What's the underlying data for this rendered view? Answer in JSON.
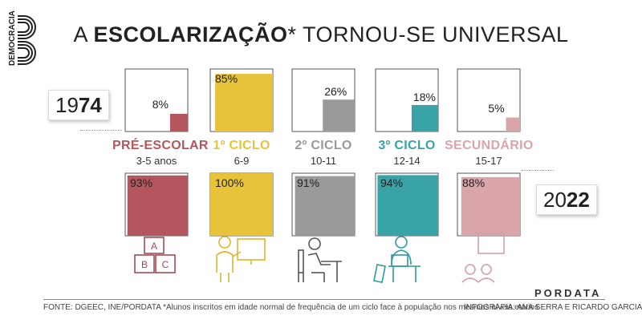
{
  "title": {
    "prefix": "A ",
    "bold": "ESCOLARIZAÇÃO",
    "suffix": "* TORNOU-SE UNIVERSAL"
  },
  "logo_text": "DEMOCRACIA",
  "years": {
    "y1974": {
      "prefix": "19",
      "bold": "74"
    },
    "y2022": {
      "prefix": "20",
      "bold": "22"
    }
  },
  "chart_data": {
    "type": "bar",
    "title": "A ESCOLARIZAÇÃO* TORNOU-SE UNIVERSAL",
    "categories": [
      "PRÉ-ESCOLAR",
      "1º CICLO",
      "2º CICLO",
      "3º CICLO",
      "SECUNDÁRIO"
    ],
    "age_ranges": [
      "3-5 anos",
      "6-9",
      "10-11",
      "12-14",
      "15-17"
    ],
    "colors": [
      "#b5565f",
      "#e8c33a",
      "#9a9a9a",
      "#3aa3a8",
      "#d9a5a9"
    ],
    "series": [
      {
        "name": "1974",
        "values": [
          8,
          85,
          26,
          18,
          5
        ],
        "labels": [
          "8%",
          "85%",
          "26%",
          "18%",
          "5%"
        ]
      },
      {
        "name": "2022",
        "values": [
          93,
          100,
          91,
          94,
          88
        ],
        "labels": [
          "93%",
          "100%",
          "91%",
          "94%",
          "88%"
        ]
      }
    ],
    "ylim": [
      0,
      100
    ]
  },
  "icons": [
    "abc-blocks-icon",
    "teacher-board-icon",
    "student-desk-icon",
    "student-laptop-icon",
    "presentation-icon"
  ],
  "brand": "PORDATA",
  "footer": {
    "source": "FONTE: DGEEC, INE/PORDATA   *Alunos inscritos em idade normal de frequência de um ciclo face à população nos mesmos níveis etários",
    "credits": "INFOGRAFIA: ANA SERRA E RICARDO GARCIA"
  }
}
